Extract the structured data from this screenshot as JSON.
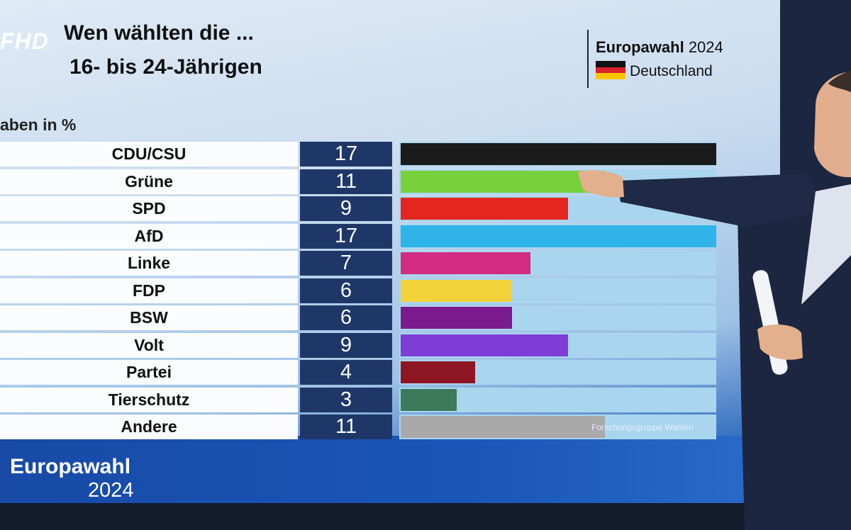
{
  "logo": "FHD",
  "title_line1": "Wen wählten die ...",
  "title_line2": "16- bis 24-Jährigen",
  "brand": {
    "name": "Europawahl",
    "year": "2024",
    "country": "Deutschland"
  },
  "subtitle": "aben in %",
  "source": "Forschungsgruppe Wahlen",
  "footer": {
    "line1": "Europawahl",
    "line2": "2024"
  },
  "chart_data": {
    "type": "bar",
    "title": "Wen wählten die ... 16- bis 24-Jährigen",
    "categories": [
      "CDU/CSU",
      "Grüne",
      "SPD",
      "AfD",
      "Linke",
      "FDP",
      "BSW",
      "Volt",
      "Partei",
      "Tierschutz",
      "Andere"
    ],
    "values": [
      17,
      11,
      9,
      17,
      7,
      6,
      6,
      9,
      4,
      3,
      11
    ],
    "colors": [
      "#1b1b1b",
      "#78d03a",
      "#e3261f",
      "#2fb3e8",
      "#d22c82",
      "#f4d23a",
      "#7b1a8c",
      "#7d3dd6",
      "#8e1522",
      "#3d7a5c",
      "#a9a9a9"
    ],
    "ylim": [
      0,
      17
    ],
    "ylabel": "in %"
  }
}
